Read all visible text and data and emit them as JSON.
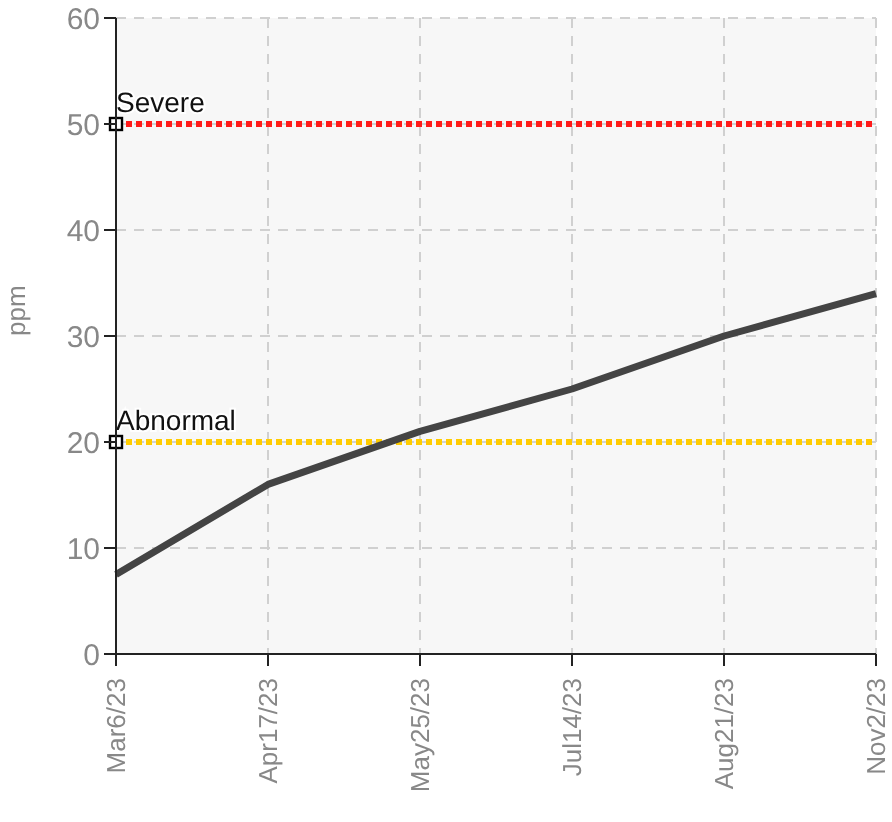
{
  "chart_data": {
    "type": "line",
    "ylabel": "ppm",
    "categories": [
      "Mar6/23",
      "Apr17/23",
      "May25/23",
      "Jul14/23",
      "Aug21/23",
      "Nov2/23"
    ],
    "series": [
      {
        "color": "#444444",
        "values": [
          7.5,
          16,
          21,
          25,
          30,
          34
        ]
      }
    ],
    "ylim": [
      0,
      60
    ],
    "yticks": [
      0,
      10,
      20,
      30,
      40,
      50,
      60
    ],
    "grid": true,
    "legend": false,
    "marker": "none",
    "line_style": "solid",
    "ref_lines": [
      {
        "axis": "y",
        "value": 50,
        "label": "Severe",
        "color": "#ff1a1a",
        "line_style": "dotted"
      },
      {
        "axis": "y",
        "value": 20,
        "label": "Abnormal",
        "color": "#ffcc00",
        "line_style": "dotted"
      }
    ]
  }
}
